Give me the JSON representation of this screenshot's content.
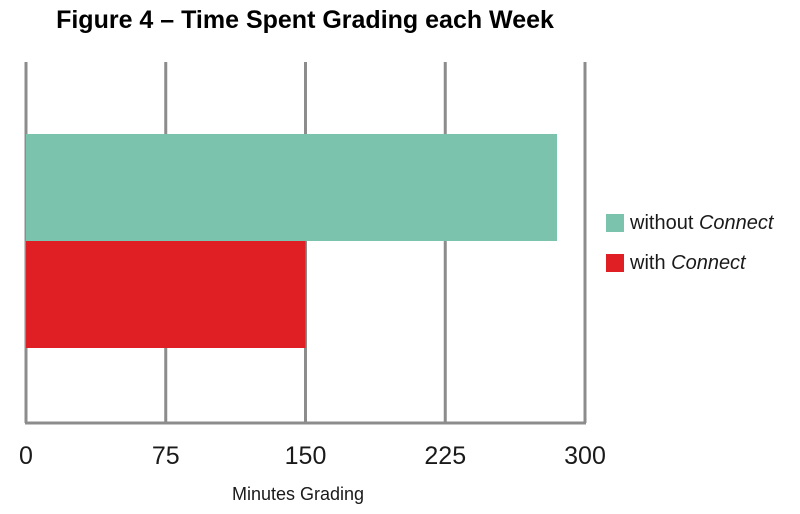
{
  "chart_data": {
    "type": "bar",
    "orientation": "horizontal",
    "title": "Figure 4 – Time Spent Grading each Week",
    "xlabel": "Minutes Grading",
    "ylabel": "",
    "xlim": [
      0,
      300
    ],
    "xticks": [
      0,
      75,
      150,
      225,
      300
    ],
    "grid": true,
    "legend_position": "right",
    "series": [
      {
        "name_plain": "without ",
        "name_italic": "Connect",
        "value": 285,
        "color": "#7cc3ae"
      },
      {
        "name_plain": "with ",
        "name_italic": "Connect",
        "value": 150,
        "color": "#e01f25"
      }
    ]
  }
}
